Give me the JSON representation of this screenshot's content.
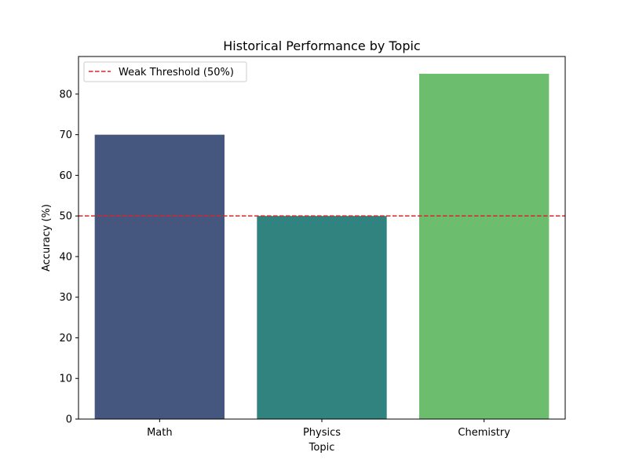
{
  "chart_data": {
    "type": "bar",
    "title": "Historical Performance by Topic",
    "xlabel": "Topic",
    "ylabel": "Accuracy (%)",
    "categories": [
      "Math",
      "Physics",
      "Chemistry"
    ],
    "values": [
      70,
      50,
      85
    ],
    "bar_colors": [
      "#46577f",
      "#30837e",
      "#6dbd6e"
    ],
    "ylim": [
      0,
      89.25
    ],
    "yticks": [
      0,
      10,
      20,
      30,
      40,
      50,
      60,
      70,
      80
    ],
    "grid": false,
    "reference_line": {
      "label": "Weak Threshold (50%)",
      "value": 50,
      "color": "#d62728",
      "style": "dashed"
    },
    "legend": {
      "position": "top-left",
      "entries": [
        "Weak Threshold (50%)"
      ]
    }
  }
}
